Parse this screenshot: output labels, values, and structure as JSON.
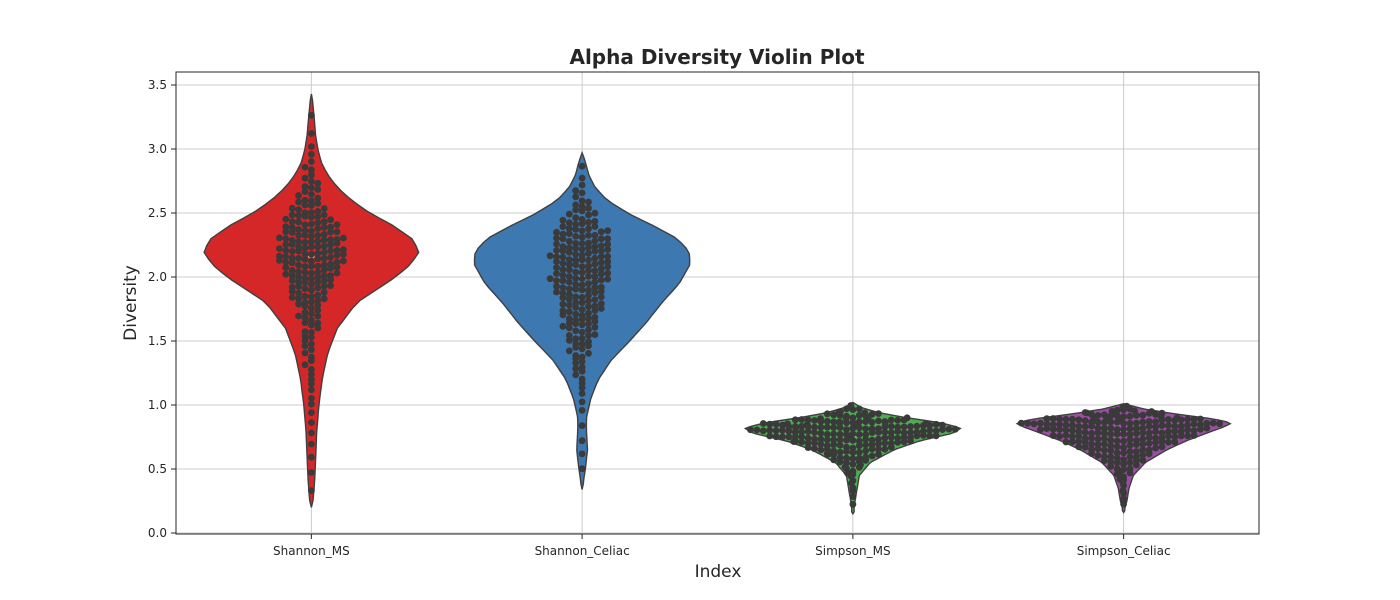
{
  "chart_data": {
    "type": "violin",
    "title": "Alpha Diversity Violin Plot",
    "xlabel": "Index",
    "ylabel": "Diversity",
    "ylim": [
      0.0,
      3.6
    ],
    "yticks": [
      0.0,
      0.5,
      1.0,
      1.5,
      2.0,
      2.5,
      3.0,
      3.5
    ],
    "ytick_labels": [
      "0.0",
      "0.5",
      "1.0",
      "1.5",
      "2.0",
      "2.5",
      "3.0",
      "3.5"
    ],
    "categories": [
      "Shannon_MS",
      "Shannon_Celiac",
      "Simpson_MS",
      "Simpson_Celiac"
    ],
    "grid": true,
    "overlay": "swarm",
    "series": [
      {
        "category": "Shannon_MS",
        "color": "#d62728",
        "range": [
          0.2,
          3.43
        ],
        "median": 2.16,
        "density": [
          [
            0.2,
            0.01
          ],
          [
            0.4,
            0.03
          ],
          [
            0.6,
            0.04
          ],
          [
            0.8,
            0.05
          ],
          [
            1.0,
            0.07
          ],
          [
            1.2,
            0.1
          ],
          [
            1.4,
            0.15
          ],
          [
            1.6,
            0.24
          ],
          [
            1.8,
            0.42
          ],
          [
            2.0,
            0.78
          ],
          [
            2.1,
            0.92
          ],
          [
            2.2,
            1.0
          ],
          [
            2.3,
            0.93
          ],
          [
            2.4,
            0.76
          ],
          [
            2.5,
            0.54
          ],
          [
            2.6,
            0.37
          ],
          [
            2.7,
            0.24
          ],
          [
            2.8,
            0.15
          ],
          [
            2.9,
            0.09
          ],
          [
            3.0,
            0.06
          ],
          [
            3.1,
            0.04
          ],
          [
            3.2,
            0.03
          ],
          [
            3.3,
            0.02
          ],
          [
            3.43,
            0.0
          ]
        ],
        "points_approx": 200
      },
      {
        "category": "Shannon_Celiac",
        "color": "#3d78b0",
        "range": [
          0.34,
          2.97
        ],
        "median": 2.0,
        "density": [
          [
            0.34,
            0.0
          ],
          [
            0.5,
            0.03
          ],
          [
            0.65,
            0.05
          ],
          [
            0.8,
            0.04
          ],
          [
            0.9,
            0.04
          ],
          [
            1.05,
            0.08
          ],
          [
            1.2,
            0.15
          ],
          [
            1.35,
            0.27
          ],
          [
            1.5,
            0.44
          ],
          [
            1.65,
            0.6
          ],
          [
            1.8,
            0.74
          ],
          [
            1.95,
            0.9
          ],
          [
            2.1,
            1.0
          ],
          [
            2.2,
            0.99
          ],
          [
            2.3,
            0.88
          ],
          [
            2.4,
            0.66
          ],
          [
            2.5,
            0.42
          ],
          [
            2.6,
            0.23
          ],
          [
            2.7,
            0.12
          ],
          [
            2.8,
            0.06
          ],
          [
            2.9,
            0.03
          ],
          [
            2.97,
            0.0
          ]
        ],
        "points_approx": 200
      },
      {
        "category": "Simpson_MS",
        "color": "#4caf4f",
        "range": [
          0.15,
          1.02
        ],
        "median": 0.76,
        "density": [
          [
            0.15,
            0.0
          ],
          [
            0.25,
            0.02
          ],
          [
            0.35,
            0.04
          ],
          [
            0.45,
            0.06
          ],
          [
            0.55,
            0.16
          ],
          [
            0.65,
            0.38
          ],
          [
            0.72,
            0.62
          ],
          [
            0.78,
            0.93
          ],
          [
            0.82,
            1.0
          ],
          [
            0.86,
            0.82
          ],
          [
            0.9,
            0.5
          ],
          [
            0.94,
            0.24
          ],
          [
            0.98,
            0.08
          ],
          [
            1.02,
            0.0
          ]
        ],
        "points_approx": 200
      },
      {
        "category": "Simpson_Celiac",
        "color": "#9b4ea3",
        "range": [
          0.16,
          1.01
        ],
        "median": 0.8,
        "density": [
          [
            0.16,
            0.0
          ],
          [
            0.25,
            0.03
          ],
          [
            0.35,
            0.05
          ],
          [
            0.45,
            0.09
          ],
          [
            0.55,
            0.2
          ],
          [
            0.65,
            0.4
          ],
          [
            0.72,
            0.58
          ],
          [
            0.78,
            0.77
          ],
          [
            0.83,
            0.93
          ],
          [
            0.86,
            1.0
          ],
          [
            0.89,
            0.84
          ],
          [
            0.93,
            0.48
          ],
          [
            0.97,
            0.18
          ],
          [
            1.01,
            0.0
          ]
        ],
        "points_approx": 200
      }
    ]
  }
}
